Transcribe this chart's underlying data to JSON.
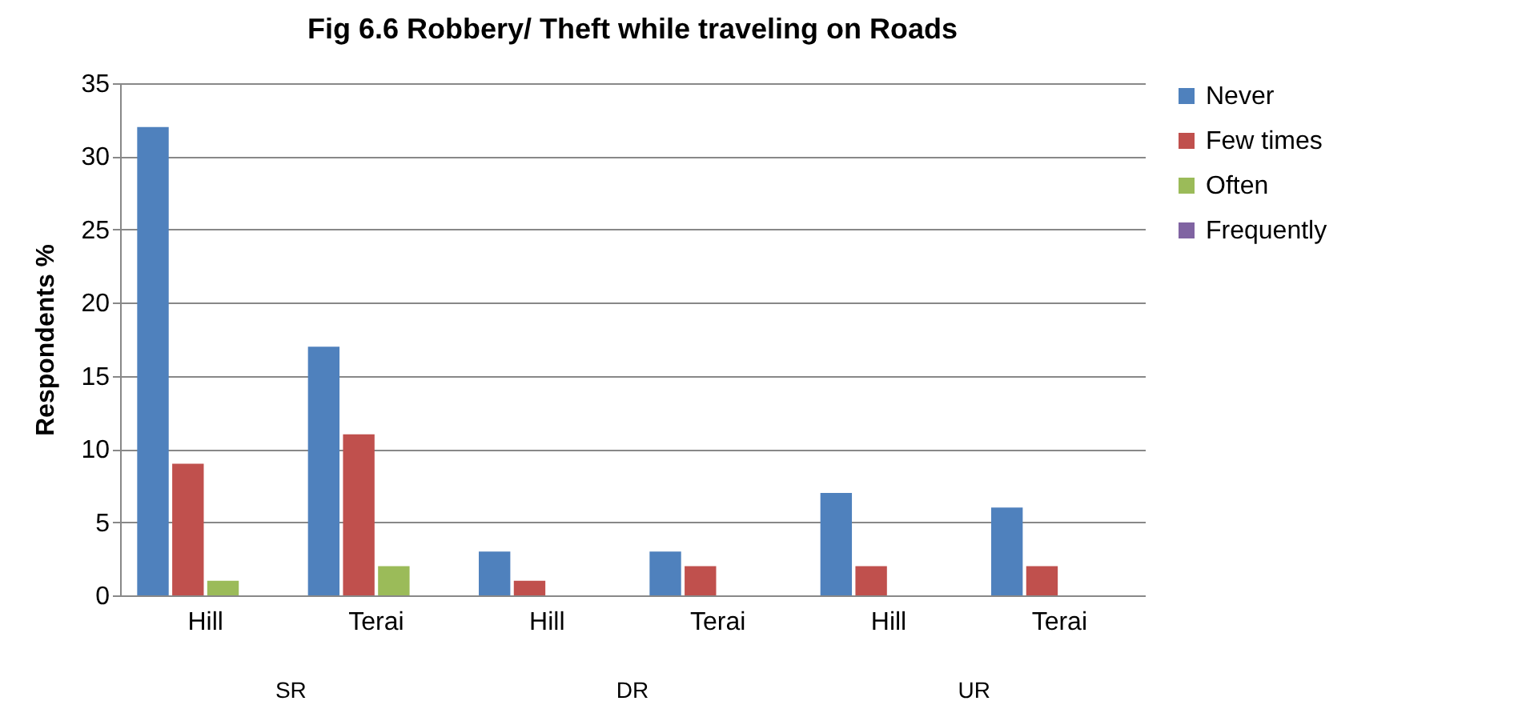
{
  "chart_data": {
    "type": "bar",
    "title": "Fig 6.6 Robbery/ Theft while traveling on Roads",
    "ylabel": "Respondents %",
    "categories": [
      "Hill",
      "Terai",
      "Hill",
      "Terai",
      "Hill",
      "Terai"
    ],
    "series": [
      {
        "name": "Never",
        "color": "#4f81bd",
        "values": [
          32,
          17,
          3,
          3,
          7,
          6
        ]
      },
      {
        "name": "Few times",
        "color": "#c0504d",
        "values": [
          9,
          11,
          1,
          2,
          2,
          2
        ]
      },
      {
        "name": "Often",
        "color": "#9bbb59",
        "values": [
          1,
          2,
          0,
          0,
          0,
          0
        ]
      },
      {
        "name": "Frequently",
        "color": "#8064a2",
        "values": [
          0,
          0,
          0,
          0,
          0,
          0
        ]
      }
    ],
    "annotations": [
      "SR",
      "DR",
      "UR"
    ],
    "ylim": [
      0,
      35
    ],
    "yticks": [
      0,
      5,
      10,
      15,
      20,
      25,
      30,
      35
    ],
    "grid": "y",
    "legend": "right"
  }
}
